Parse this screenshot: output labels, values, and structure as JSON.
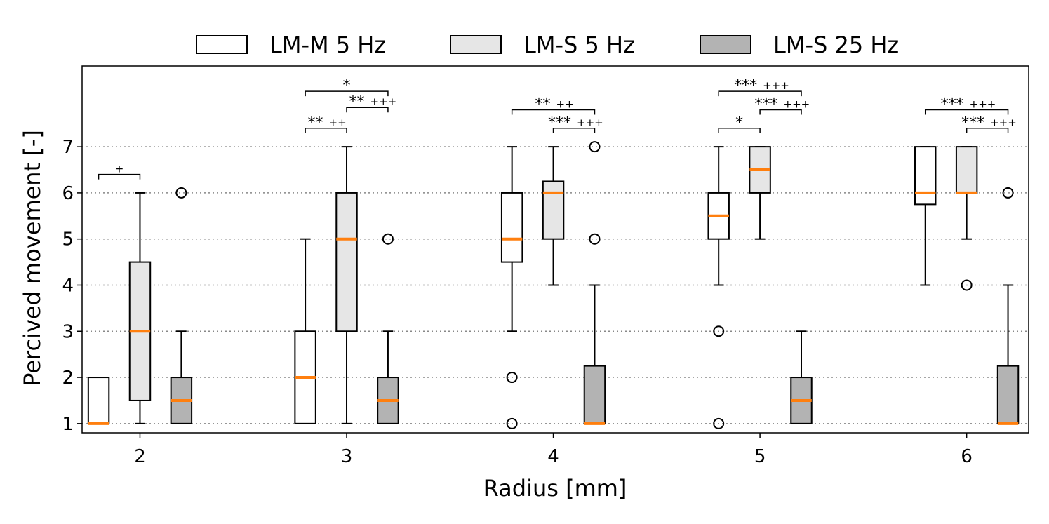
{
  "chart_data": {
    "type": "box",
    "xlabel": "Radius [mm]",
    "ylabel": "Percived movement [-]",
    "categories": [
      "2",
      "3",
      "4",
      "5",
      "6"
    ],
    "yticks": [
      "1",
      "2",
      "3",
      "4",
      "5",
      "6",
      "7"
    ],
    "ylim": [
      0.8,
      8.75
    ],
    "xlim": [
      1.72,
      6.3
    ],
    "grid": "horizontal dotted",
    "legend_position": "top, outside plot",
    "colors": {
      "median": "#ff7f0e",
      "edge": "#000000",
      "grid": "#888888"
    },
    "series": [
      {
        "name": "LM-M 5 Hz",
        "color": "#ffffff",
        "offset": -0.2,
        "boxes": [
          {
            "q1": 1,
            "median": 1,
            "q3": 2,
            "wlo": 1,
            "whi": 2,
            "outliers": []
          },
          {
            "q1": 1,
            "median": 2,
            "q3": 3,
            "wlo": 1,
            "whi": 5,
            "outliers": []
          },
          {
            "q1": 4.5,
            "median": 5,
            "q3": 6,
            "wlo": 3,
            "whi": 7,
            "outliers": [
              2,
              1
            ]
          },
          {
            "q1": 5,
            "median": 5.5,
            "q3": 6,
            "wlo": 4,
            "whi": 7,
            "outliers": [
              3,
              1
            ]
          },
          {
            "q1": 5.75,
            "median": 6,
            "q3": 7,
            "wlo": 4,
            "whi": 7,
            "outliers": []
          }
        ]
      },
      {
        "name": "LM-S 5 Hz",
        "color": "#e6e6e6",
        "offset": 0,
        "boxes": [
          {
            "q1": 1.5,
            "median": 3,
            "q3": 4.5,
            "wlo": 1,
            "whi": 6,
            "outliers": []
          },
          {
            "q1": 3,
            "median": 5,
            "q3": 6,
            "wlo": 1,
            "whi": 7,
            "outliers": []
          },
          {
            "q1": 5,
            "median": 6,
            "q3": 6.25,
            "wlo": 4,
            "whi": 7,
            "outliers": []
          },
          {
            "q1": 6,
            "median": 6.5,
            "q3": 7,
            "wlo": 5,
            "whi": 7,
            "outliers": []
          },
          {
            "q1": 6,
            "median": 6,
            "q3": 7,
            "wlo": 5,
            "whi": 7,
            "outliers": [
              4
            ]
          }
        ]
      },
      {
        "name": "LM-S 25 Hz",
        "color": "#b3b3b3",
        "offset": 0.2,
        "boxes": [
          {
            "q1": 1,
            "median": 1.5,
            "q3": 2,
            "wlo": 1,
            "whi": 3,
            "outliers": [
              6
            ]
          },
          {
            "q1": 1,
            "median": 1.5,
            "q3": 2,
            "wlo": 1,
            "whi": 3,
            "outliers": [
              5
            ]
          },
          {
            "q1": 1,
            "median": 1,
            "q3": 2.25,
            "wlo": 1,
            "whi": 4,
            "outliers": [
              7,
              5
            ]
          },
          {
            "q1": 1,
            "median": 1.5,
            "q3": 2,
            "wlo": 1,
            "whi": 3,
            "outliers": []
          },
          {
            "q1": 1,
            "median": 1,
            "q3": 2.25,
            "wlo": 1,
            "whi": 4,
            "outliers": [
              6
            ]
          }
        ]
      }
    ],
    "significance": [
      {
        "x1": 1.8,
        "x2": 2.0,
        "y": 6.4,
        "stars": "",
        "plus": "+"
      },
      {
        "x1": 2.8,
        "x2": 3.2,
        "y": 8.2,
        "stars": "*",
        "plus": ""
      },
      {
        "x1": 3.0,
        "x2": 3.2,
        "y": 7.85,
        "stars": "**",
        "plus": "+++"
      },
      {
        "x1": 2.8,
        "x2": 3.0,
        "y": 7.4,
        "stars": "**",
        "plus": "++"
      },
      {
        "x1": 3.8,
        "x2": 4.2,
        "y": 7.8,
        "stars": "**",
        "plus": "++"
      },
      {
        "x1": 4.0,
        "x2": 4.2,
        "y": 7.4,
        "stars": "***",
        "plus": "+++"
      },
      {
        "x1": 4.8,
        "x2": 5.2,
        "y": 8.2,
        "stars": "***",
        "plus": "+++"
      },
      {
        "x1": 5.0,
        "x2": 5.2,
        "y": 7.8,
        "stars": "***",
        "plus": "+++"
      },
      {
        "x1": 4.8,
        "x2": 5.0,
        "y": 7.4,
        "stars": "*",
        "plus": ""
      },
      {
        "x1": 5.8,
        "x2": 6.2,
        "y": 7.8,
        "stars": "***",
        "plus": "+++"
      },
      {
        "x1": 6.0,
        "x2": 6.2,
        "y": 7.4,
        "stars": "***",
        "plus": "+++"
      }
    ]
  }
}
